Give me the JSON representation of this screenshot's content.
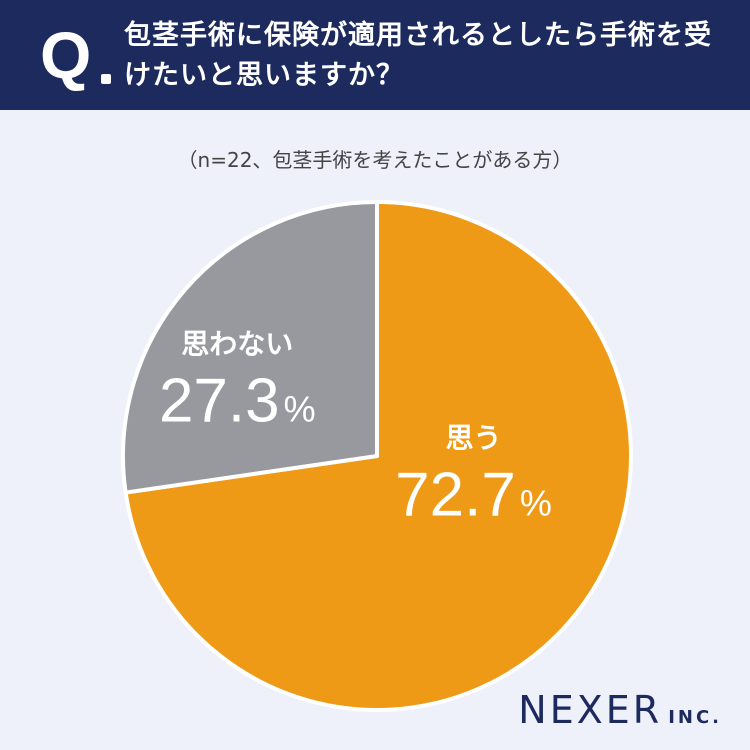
{
  "header": {
    "q_label": "Q",
    "question": "包茎手術に保険が適用されるとしたら手術を受けたいと思いますか？"
  },
  "subtitle": "（n=22、包茎手術を考えたことがある方）",
  "chart_data": {
    "type": "pie",
    "categories": [
      "思う",
      "思わない"
    ],
    "values": [
      72.7,
      27.3
    ],
    "unit": "%",
    "colors": [
      "#ef9a16",
      "#98999e"
    ],
    "label_color": "#ffffff",
    "start": "12 o'clock, clockwise"
  },
  "logo": {
    "main": "NEXER",
    "sub": "INC."
  }
}
